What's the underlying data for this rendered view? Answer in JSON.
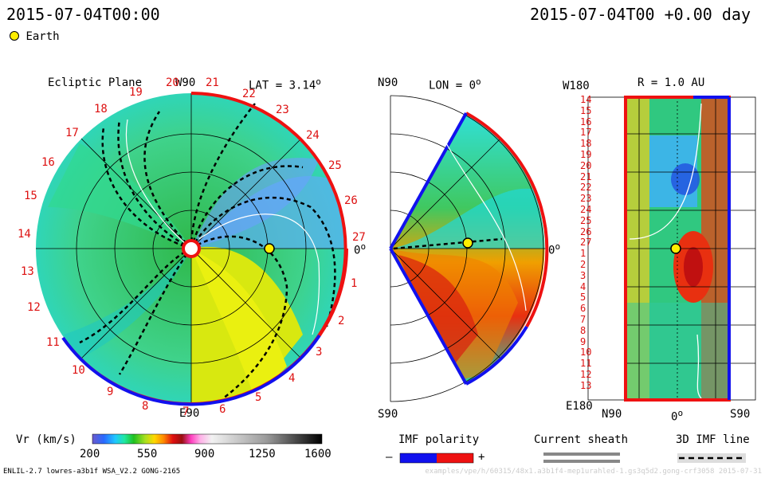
{
  "header": {
    "time_left": "2015-07-04T00:00",
    "time_right": "2015-07-04T00 +0.00 day",
    "legend_earth": "Earth"
  },
  "panels": {
    "ecliptic": {
      "title": "Ecliptic Plane",
      "lat": "LAT = 3.14",
      "lat_sup": "o",
      "top": "W90",
      "bottom": "E90",
      "right": "0",
      "right_sup": "o",
      "carrington_labels": [
        "20",
        "21",
        "22",
        "23",
        "24",
        "25",
        "26",
        "27",
        "1",
        "2",
        "3",
        "4",
        "5",
        "6",
        "7",
        "8",
        "9",
        "10",
        "11",
        "12",
        "13",
        "14",
        "15",
        "16",
        "17",
        "18",
        "19"
      ]
    },
    "meridional": {
      "top": "N90",
      "lon": "LON = 0",
      "lon_sup": "o",
      "bottom": "S90",
      "right": "0",
      "right_sup": "o"
    },
    "radial": {
      "top_left": "W180",
      "r_label": "R = 1.0 AU",
      "bottom_left": "E180",
      "x_left": "N90",
      "x_mid": "0",
      "x_mid_sup": "o",
      "x_right": "S90",
      "y_labels": [
        "14",
        "15",
        "16",
        "17",
        "18",
        "19",
        "20",
        "21",
        "22",
        "23",
        "24",
        "25",
        "26",
        "27",
        "1",
        "2",
        "3",
        "4",
        "5",
        "6",
        "7",
        "8",
        "9",
        "10",
        "11",
        "12",
        "13"
      ]
    }
  },
  "colorbar": {
    "label": "Vr (km/s)",
    "ticks": [
      "200",
      "550",
      "900",
      "1250",
      "1600"
    ]
  },
  "imf": {
    "label": "IMF polarity",
    "minus": "–",
    "plus": "+"
  },
  "current_sheath": {
    "label": "Current sheath"
  },
  "imf_line": {
    "label": "3D IMF line"
  },
  "footer": {
    "left": "ENLIL-2.7 lowres-a3b1f WSA_V2.2 GONG-2165",
    "right": "examples/vpe/h/60315/48x1.a3b1f4-mep1urahled-1.gs3q5d2.gong-crf3058   2015-07-31"
  },
  "colors": {
    "positive": "#e11",
    "negative": "#11e",
    "earth": "#ffee00"
  }
}
